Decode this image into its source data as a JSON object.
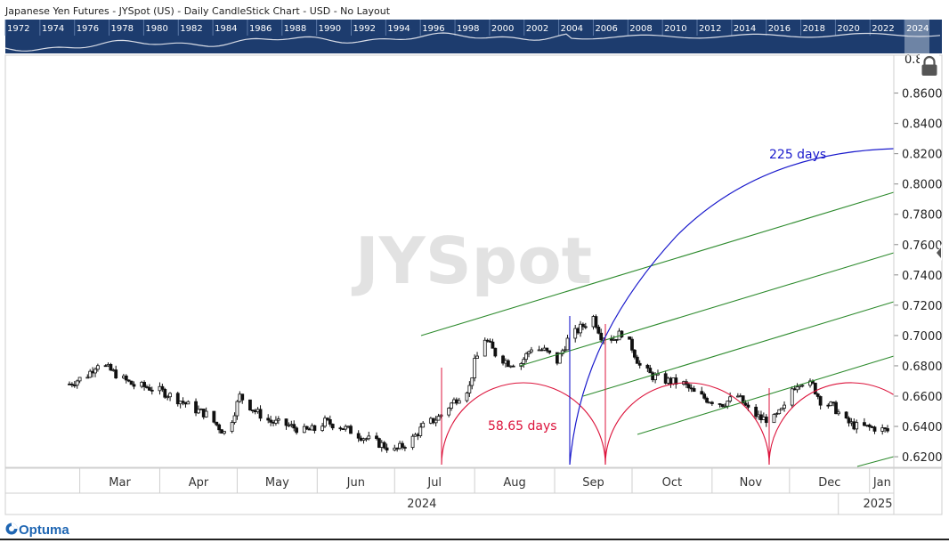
{
  "header": {
    "title": "Japanese Yen Futures - JYSpot (US) - Daily CandleStick Chart - USD - No Layout"
  },
  "overview": {
    "years": [
      "1972",
      "1974",
      "1976",
      "1978",
      "1980",
      "1982",
      "1984",
      "1986",
      "1988",
      "1990",
      "1992",
      "1994",
      "1996",
      "1998",
      "2000",
      "2002",
      "2004",
      "2006",
      "2008",
      "2010",
      "2012",
      "2014",
      "2016",
      "2018",
      "2020",
      "2022",
      "2024"
    ]
  },
  "watermark": "JYSpot",
  "brand": {
    "logo_text": "Optuma"
  },
  "colors": {
    "candles": "#111111",
    "fan_lines": "#2e8b2e",
    "cycle_arcs": "#dc143c",
    "time_arc": "#1a1acc",
    "overview_bg": "#1d3c6e"
  },
  "icons": {
    "lock": "lock-icon",
    "collapse": "chevron-left-icon"
  },
  "chart_data": {
    "type": "candlestick",
    "title": "Japanese Yen Futures - JYSpot (US) - Daily CandleStick Chart - USD - No Layout",
    "xlabel": "",
    "ylabel": "",
    "ylim": [
      0.613,
      0.885
    ],
    "y_ticks": [
      "0.8600",
      "0.8400",
      "0.8200",
      "0.8000",
      "0.7800",
      "0.7600",
      "0.7400",
      "0.7200",
      "0.7000",
      "0.6800",
      "0.6600",
      "0.6400",
      "0.6200"
    ],
    "y_tick_top_partial": "0.8",
    "x_range": [
      "2024-02-26",
      "2025-01-08"
    ],
    "x_months": [
      {
        "label": "Mar",
        "date": "2024-03-01"
      },
      {
        "label": "Apr",
        "date": "2024-04-01"
      },
      {
        "label": "May",
        "date": "2024-05-01"
      },
      {
        "label": "Jun",
        "date": "2024-06-01"
      },
      {
        "label": "Jul",
        "date": "2024-07-01"
      },
      {
        "label": "Aug",
        "date": "2024-08-01"
      },
      {
        "label": "Sep",
        "date": "2024-09-01"
      },
      {
        "label": "Oct",
        "date": "2024-10-01"
      },
      {
        "label": "Nov",
        "date": "2024-11-01"
      },
      {
        "label": "Dec",
        "date": "2024-12-01"
      },
      {
        "label": "Jan",
        "date": "2025-01-01"
      }
    ],
    "x_years": [
      {
        "label": "2024",
        "date": "2024-03-01"
      },
      {
        "label": "2025",
        "date": "2025-01-01"
      }
    ],
    "price_path": [
      [
        "2024-02-26",
        0.668
      ],
      [
        "2024-03-04",
        0.674
      ],
      [
        "2024-03-08",
        0.682
      ],
      [
        "2024-03-12",
        0.678
      ],
      [
        "2024-03-18",
        0.671
      ],
      [
        "2024-03-22",
        0.667
      ],
      [
        "2024-03-27",
        0.666
      ],
      [
        "2024-04-02",
        0.663
      ],
      [
        "2024-04-09",
        0.657
      ],
      [
        "2024-04-15",
        0.651
      ],
      [
        "2024-04-19",
        0.648
      ],
      [
        "2024-04-26",
        0.636
      ],
      [
        "2024-04-29",
        0.645
      ],
      [
        "2024-05-02",
        0.66
      ],
      [
        "2024-05-08",
        0.65
      ],
      [
        "2024-05-14",
        0.643
      ],
      [
        "2024-05-20",
        0.641
      ],
      [
        "2024-05-27",
        0.637
      ],
      [
        "2024-05-31",
        0.638
      ],
      [
        "2024-06-04",
        0.643
      ],
      [
        "2024-06-10",
        0.64
      ],
      [
        "2024-06-14",
        0.637
      ],
      [
        "2024-06-20",
        0.632
      ],
      [
        "2024-06-26",
        0.628
      ],
      [
        "2024-07-01",
        0.624
      ],
      [
        "2024-07-03",
        0.626
      ],
      [
        "2024-07-08",
        0.632
      ],
      [
        "2024-07-12",
        0.64
      ],
      [
        "2024-07-18",
        0.646
      ],
      [
        "2024-07-23",
        0.655
      ],
      [
        "2024-07-26",
        0.66
      ],
      [
        "2024-07-30",
        0.666
      ],
      [
        "2024-08-01",
        0.682
      ],
      [
        "2024-08-05",
        0.698
      ],
      [
        "2024-08-09",
        0.688
      ],
      [
        "2024-08-14",
        0.682
      ],
      [
        "2024-08-19",
        0.682
      ],
      [
        "2024-08-23",
        0.692
      ],
      [
        "2024-08-28",
        0.69
      ],
      [
        "2024-09-02",
        0.683
      ],
      [
        "2024-09-06",
        0.697
      ],
      [
        "2024-09-11",
        0.705
      ],
      [
        "2024-09-16",
        0.712
      ],
      [
        "2024-09-19",
        0.7
      ],
      [
        "2024-09-24",
        0.698
      ],
      [
        "2024-09-27",
        0.702
      ],
      [
        "2024-10-01",
        0.692
      ],
      [
        "2024-10-04",
        0.68
      ],
      [
        "2024-10-09",
        0.673
      ],
      [
        "2024-10-15",
        0.67
      ],
      [
        "2024-10-21",
        0.668
      ],
      [
        "2024-10-25",
        0.662
      ],
      [
        "2024-10-30",
        0.658
      ],
      [
        "2024-11-05",
        0.655
      ],
      [
        "2024-11-11",
        0.66
      ],
      [
        "2024-11-15",
        0.651
      ],
      [
        "2024-11-20",
        0.645
      ],
      [
        "2024-11-25",
        0.645
      ],
      [
        "2024-11-29",
        0.652
      ],
      [
        "2024-12-02",
        0.665
      ],
      [
        "2024-12-05",
        0.67
      ],
      [
        "2024-12-10",
        0.667
      ],
      [
        "2024-12-13",
        0.657
      ],
      [
        "2024-12-18",
        0.653
      ],
      [
        "2024-12-23",
        0.643
      ],
      [
        "2024-12-27",
        0.64
      ],
      [
        "2025-01-03",
        0.639
      ],
      [
        "2025-01-08",
        0.637
      ]
    ],
    "annotations": [
      {
        "label": "225 days",
        "type": "time-arc",
        "color": "#1a1acc"
      },
      {
        "label": "58.65 days",
        "type": "cycle-arcs",
        "color": "#dc143c"
      }
    ]
  }
}
